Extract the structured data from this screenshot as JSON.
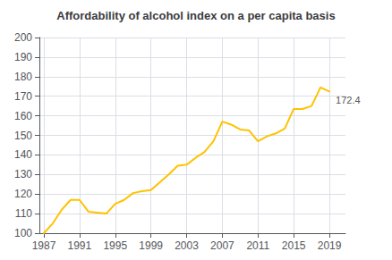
{
  "chart_data": {
    "type": "line",
    "title": "Affordability of alcohol index on a per capita basis",
    "x": [
      1987,
      1988,
      1989,
      1990,
      1991,
      1992,
      1993,
      1994,
      1995,
      1996,
      1997,
      1998,
      1999,
      2000,
      2001,
      2002,
      2003,
      2004,
      2005,
      2006,
      2007,
      2008,
      2009,
      2010,
      2011,
      2012,
      2013,
      2014,
      2015,
      2016,
      2017,
      2018,
      2019
    ],
    "values": [
      100.0,
      105.0,
      112.0,
      117.0,
      117.0,
      111.0,
      110.5,
      110.0,
      115.0,
      117.0,
      120.5,
      121.5,
      122.0,
      126.0,
      130.0,
      134.5,
      135.0,
      138.5,
      141.5,
      147.0,
      157.0,
      155.5,
      153.0,
      152.5,
      147.0,
      149.5,
      151.0,
      153.5,
      163.5,
      163.5,
      165.0,
      174.5,
      172.4
    ],
    "color": "#FFC200",
    "xlim": [
      1986.5,
      2020.8
    ],
    "xticks": [
      1987,
      1991,
      1995,
      1999,
      2003,
      2007,
      2011,
      2015,
      2019
    ],
    "ylim": [
      100,
      200
    ],
    "yticks": [
      100,
      110,
      120,
      130,
      140,
      150,
      160,
      170,
      180,
      190,
      200
    ],
    "grid": true,
    "annotations": [
      {
        "text": "172.4",
        "x": 2019,
        "y": 172.4,
        "color": "#555555"
      }
    ]
  }
}
